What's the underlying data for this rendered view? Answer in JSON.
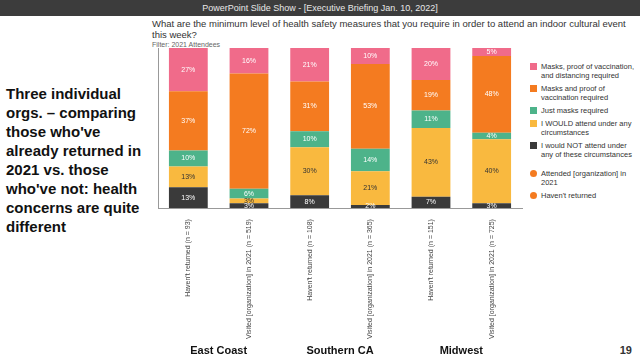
{
  "slide": {
    "window_title": "PowerPoint Slide Show - [Executive Briefing Jan. 10, 2022]",
    "text": "Three individual orgs. – comparing those who've already returned in 2021 vs. those who've not: health concerns are quite different",
    "page": 19
  },
  "chart_data": {
    "type": "bar",
    "stacked": true,
    "title": "What are the minimum level of health safety measures that you require in order to attend an indoor cultural event this week?",
    "subtitle": "Filter: 2021 Attendees",
    "categories": [
      "Haven't returned (n = 93)",
      "Visited [organization] in 2021 (n = 519)",
      "Haven't returned (n = 108)",
      "Visited [organization] in 2021 (n = 365)",
      "Haven't returned (n = 151)",
      "Visited [organization] in 2021 (n = 725)"
    ],
    "group_labels": [
      "East Coast",
      "Southern CA",
      "Midwest"
    ],
    "series": [
      {
        "name": "I would NOT attend under any of these circumstances",
        "color": "#3a3a3a",
        "values": [
          13,
          3,
          8,
          2,
          7,
          3
        ],
        "value_labels": [
          "13%",
          "3%",
          "8%",
          "2%",
          "7%",
          "3%"
        ]
      },
      {
        "name": "I WOULD attend under any circumstances",
        "color": "#f9b93f",
        "values": [
          13,
          3,
          30,
          21,
          43,
          40
        ],
        "value_labels": [
          "13%",
          "3%",
          "30%",
          "21%",
          "43%",
          "40%"
        ]
      },
      {
        "name": "Just masks required",
        "color": "#4db38a",
        "values": [
          10,
          6,
          10,
          14,
          11,
          4
        ],
        "value_labels": [
          "10%",
          "6%",
          "10%",
          "14%",
          "11%",
          "4%"
        ]
      },
      {
        "name": "Masks and proof of vaccination required",
        "color": "#f47b20",
        "values": [
          37,
          72,
          31,
          53,
          19,
          48
        ],
        "value_labels": [
          "37%",
          "72%",
          "31%",
          "53%",
          "19%",
          "48%"
        ]
      },
      {
        "name": "Masks, proof of vaccination, and distancing required",
        "color": "#f06b8a",
        "values": [
          27,
          16,
          21,
          10,
          20,
          5
        ],
        "value_labels": [
          "27%",
          "16%",
          "21%",
          "10%",
          "20%",
          "5%"
        ]
      }
    ],
    "ylim": [
      0,
      100
    ],
    "yticks": [],
    "tick_labels": "x",
    "grid": false,
    "legend": "right",
    "data_labels": true,
    "annotations": [
      "Attended [organization] in 2021",
      "Haven't returned"
    ]
  }
}
